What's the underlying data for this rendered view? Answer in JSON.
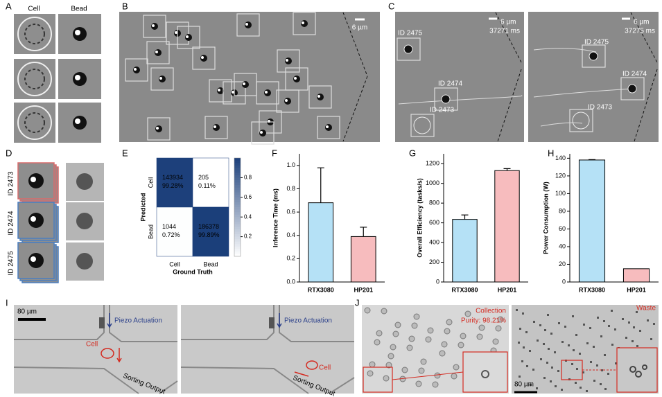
{
  "labels": [
    "A",
    "B",
    "C",
    "D",
    "E",
    "F",
    "G",
    "H",
    "I",
    "J"
  ],
  "a": {
    "columns": [
      "Cell",
      "Bead"
    ]
  },
  "b": {
    "scale": "6 µm"
  },
  "c": {
    "frames": [
      {
        "scale": "6 µm",
        "time": "37271 ms",
        "ids": [
          "ID 2475",
          "ID 2474",
          "ID 2473"
        ]
      },
      {
        "scale": "6 µm",
        "time": "37275 ms",
        "ids": [
          "ID 2475",
          "ID 2474",
          "ID 2473"
        ]
      }
    ]
  },
  "d": {
    "ids": [
      "ID 2473",
      "ID 2474",
      "ID 2475"
    ]
  },
  "i": {
    "scale": "80 µm",
    "frames": [
      {
        "actuation": "Piezo Actuation",
        "cell": "Cell",
        "output": "Sorting Output"
      },
      {
        "actuation": "Piezo Actuation",
        "cell": "Cell",
        "output": "Sorting Output"
      }
    ]
  },
  "j": {
    "collection": "Collection",
    "purity": "Purity: 98.21%",
    "waste": "Waste",
    "scale": "80 µm"
  },
  "chart_data": [
    {
      "type": "heatmap",
      "x_label": "Ground Truth",
      "y_label": "Predicted",
      "x_categories": [
        "Cell",
        "Bead"
      ],
      "y_categories": [
        "Cell",
        "Bead"
      ],
      "counts": [
        [
          143934,
          205
        ],
        [
          1044,
          186378
        ]
      ],
      "values": [
        [
          0.9928,
          0.0011
        ],
        [
          0.0072,
          0.9989
        ]
      ],
      "value_labels": [
        [
          "99.28%",
          "0.11%"
        ],
        [
          "0.72%",
          "99.89%"
        ]
      ],
      "clim": [
        0,
        1
      ],
      "colorbar_ticks": [
        0.2,
        0.4,
        0.6,
        0.8
      ],
      "colors": [
        "#ffffff",
        "#1b3f7a"
      ]
    },
    {
      "type": "bar",
      "y_label": "Inference Time (ms)",
      "categories": [
        "RTX3080",
        "HP201"
      ],
      "values": [
        0.68,
        0.39
      ],
      "errors": [
        0.3,
        0.08
      ],
      "colors": [
        "#b5e1f6",
        "#f7bcbe"
      ],
      "ylim": [
        0,
        1.1
      ],
      "yticks": [
        {
          "value": 0,
          "label": "0.0"
        },
        0.2,
        0.4,
        0.6,
        0.8,
        {
          "value": 1,
          "label": "1.0"
        }
      ]
    },
    {
      "type": "bar",
      "y_label": "Overall Efficiency (tasks/s)",
      "categories": [
        "RTX3080",
        "HP201"
      ],
      "values": [
        635,
        1130
      ],
      "errors": [
        45,
        20
      ],
      "colors": [
        "#b5e1f6",
        "#f7bcbe"
      ],
      "ylim": [
        0,
        1300
      ],
      "yticks": [
        0,
        200,
        400,
        600,
        800,
        1000,
        1200
      ]
    },
    {
      "type": "bar",
      "y_label": "Power Consumption (W)",
      "categories": [
        "RTX3080",
        "HP201"
      ],
      "values": [
        138,
        15
      ],
      "errors": [
        0.5,
        null
      ],
      "colors": [
        "#b5e1f6",
        "#f7bcbe"
      ],
      "ylim": [
        0,
        145
      ],
      "yticks": [
        0,
        20,
        40,
        60,
        80,
        100,
        120,
        140
      ]
    }
  ]
}
